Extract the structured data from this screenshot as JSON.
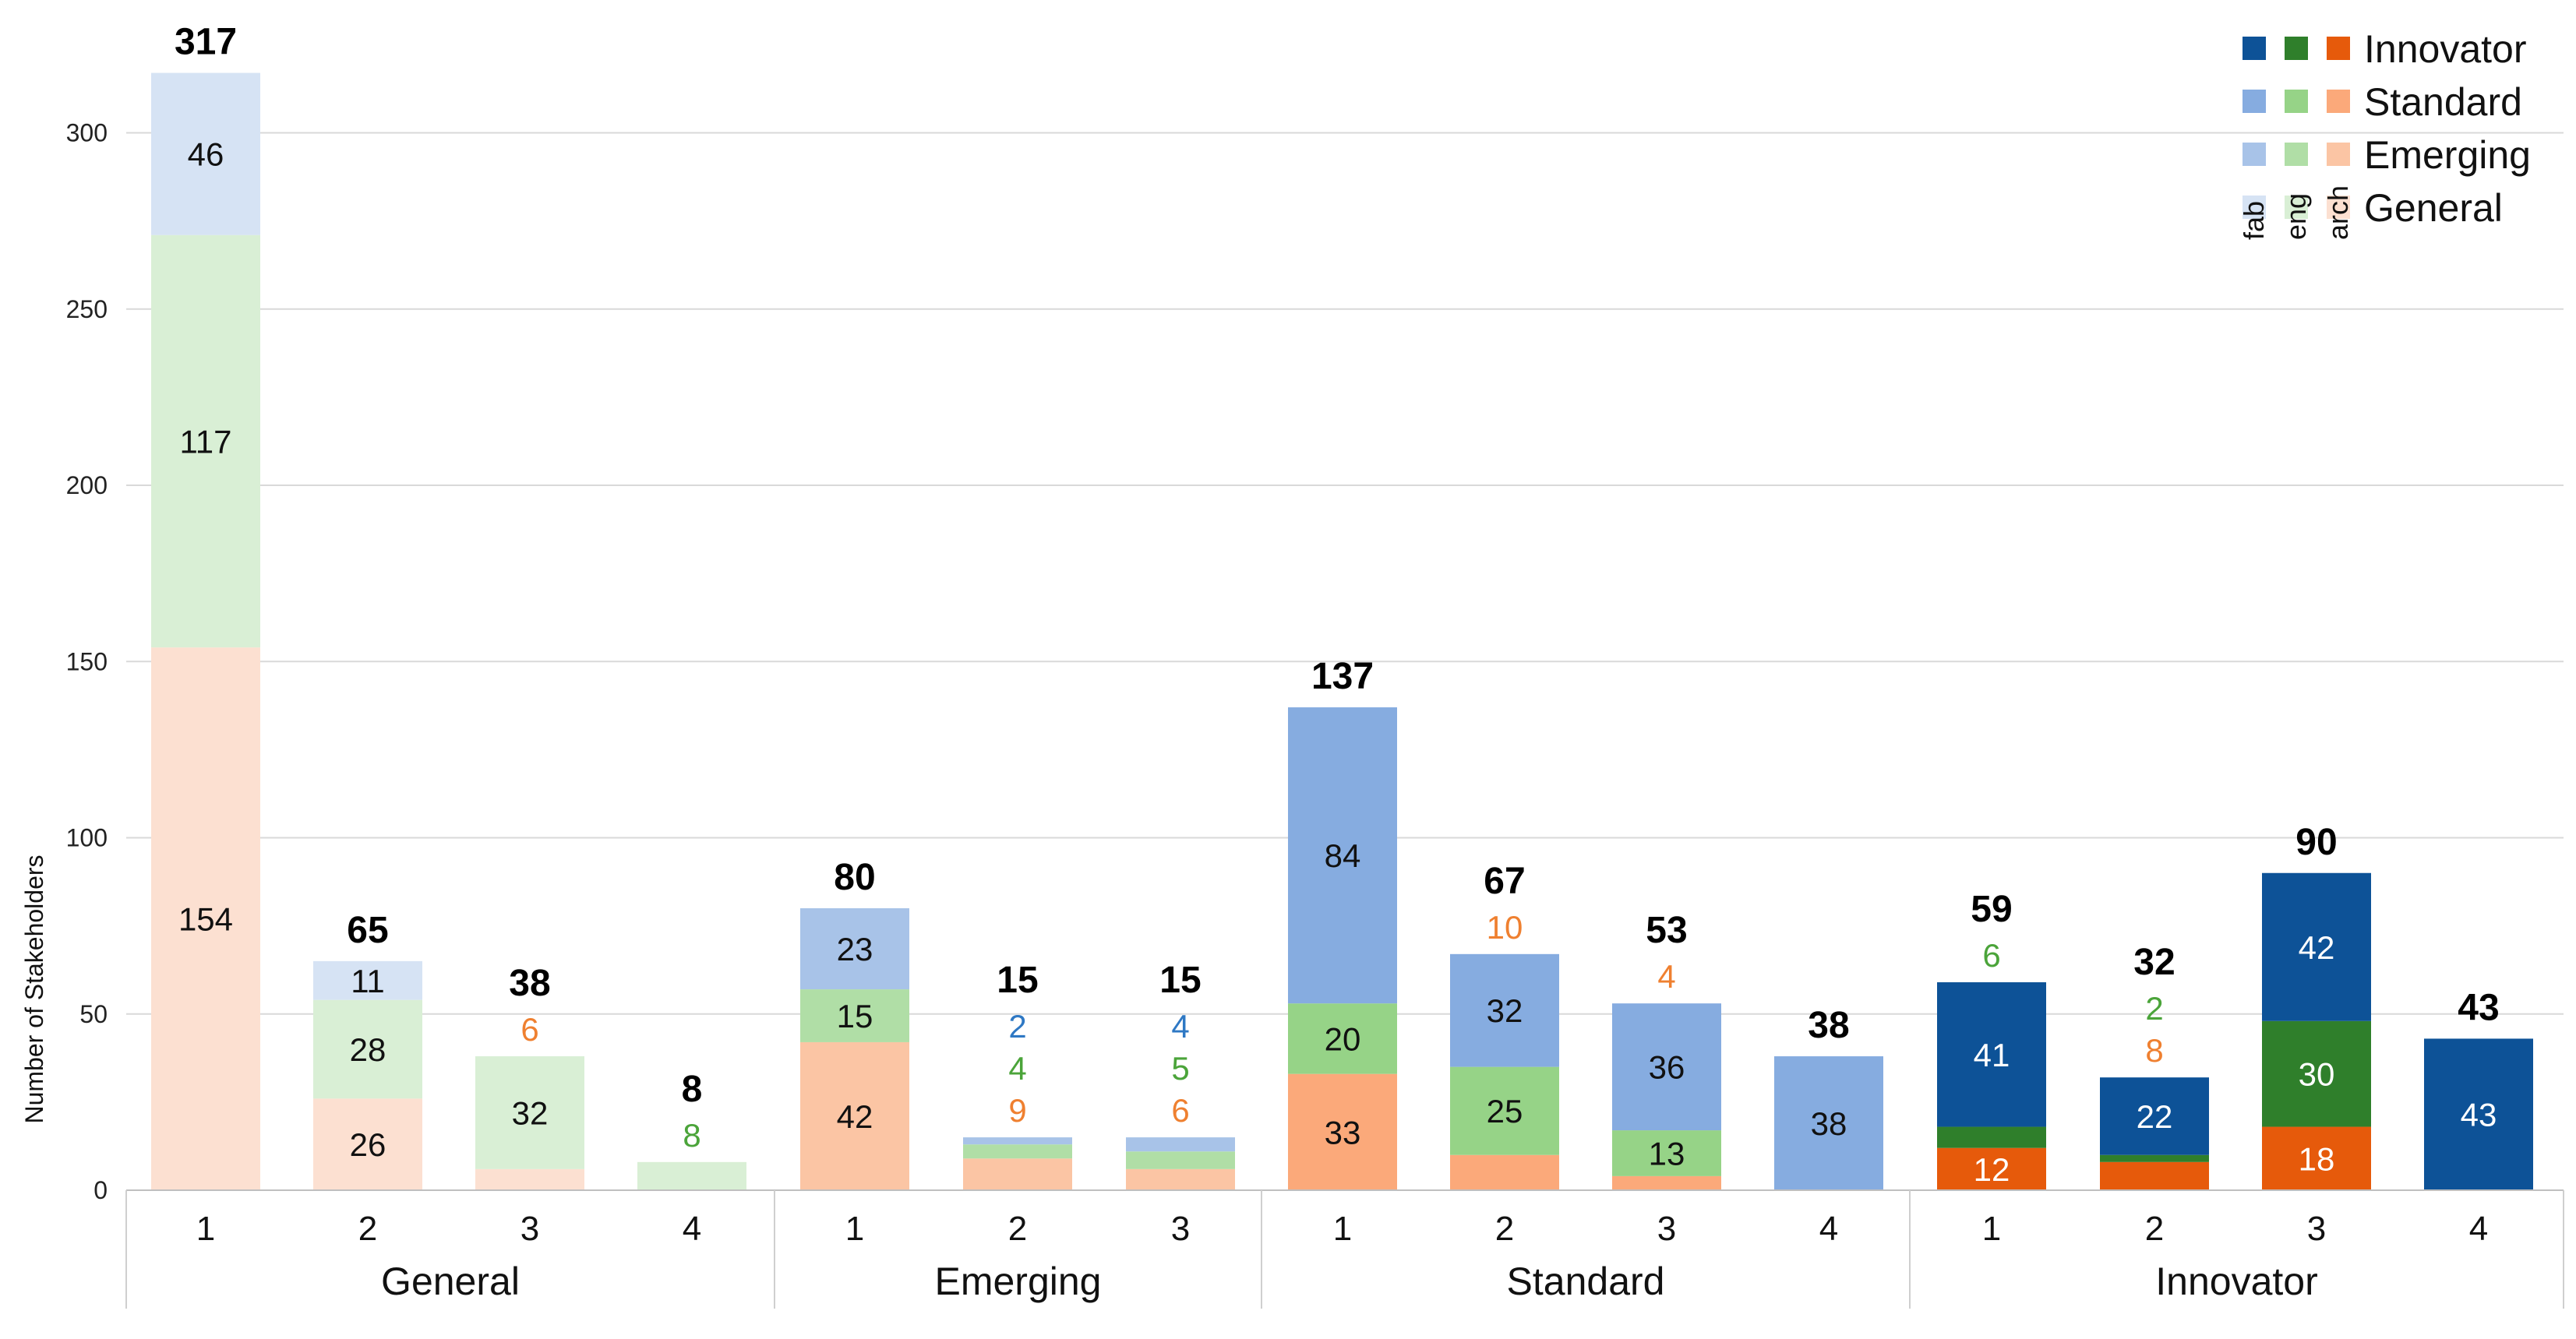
{
  "chart_data": {
    "type": "stacked-bar",
    "ylabel": "Number of Stakeholders",
    "ylim": [
      0,
      320
    ],
    "yticks": [
      0,
      50,
      100,
      150,
      200,
      250,
      300
    ],
    "grid": true,
    "legend_position": "top-right",
    "legend": {
      "rows": [
        "Innovator",
        "Standard",
        "Emerging",
        "General"
      ],
      "columns": [
        "fab",
        "eng",
        "arch"
      ]
    },
    "colors": {
      "fab": {
        "General": "#d6e3f4",
        "Emerging": "#a8c3e8",
        "Standard": "#86ace0",
        "Innovator": "#0d5297"
      },
      "eng": {
        "General": "#d9efd5",
        "Emerging": "#b0dea6",
        "Standard": "#96d387",
        "Innovator": "#2f7f2b"
      },
      "arch": {
        "General": "#fce0d1",
        "Emerging": "#fbc5a4",
        "Standard": "#fba97a",
        "Innovator": "#e65a0b"
      },
      "label_fab": "#2e78c4",
      "label_eng": "#4ba43a",
      "label_arch": "#ef8030"
    },
    "bars": [
      {
        "group": "General",
        "category": "1",
        "total": 317,
        "arch": 154,
        "eng": 117,
        "fab": 46
      },
      {
        "group": "General",
        "category": "2",
        "total": 65,
        "arch": 26,
        "eng": 28,
        "fab": 11
      },
      {
        "group": "General",
        "category": "3",
        "total": 38,
        "arch": 6,
        "eng": 32,
        "fab": 0
      },
      {
        "group": "General",
        "category": "4",
        "total": 8,
        "arch": 0,
        "eng": 8,
        "fab": 0
      },
      {
        "group": "Emerging",
        "category": "1",
        "total": 80,
        "arch": 42,
        "eng": 15,
        "fab": 23
      },
      {
        "group": "Emerging",
        "category": "2",
        "total": 15,
        "arch": 9,
        "eng": 4,
        "fab": 2
      },
      {
        "group": "Emerging",
        "category": "3",
        "total": 15,
        "arch": 6,
        "eng": 5,
        "fab": 4
      },
      {
        "group": "Standard",
        "category": "1",
        "total": 137,
        "arch": 33,
        "eng": 20,
        "fab": 84
      },
      {
        "group": "Standard",
        "category": "2",
        "total": 67,
        "arch": 10,
        "eng": 25,
        "fab": 32
      },
      {
        "group": "Standard",
        "category": "3",
        "total": 53,
        "arch": 4,
        "eng": 13,
        "fab": 36
      },
      {
        "group": "Standard",
        "category": "4",
        "total": 38,
        "arch": 0,
        "eng": 0,
        "fab": 38
      },
      {
        "group": "Innovator",
        "category": "1",
        "total": 59,
        "arch": 12,
        "eng": 6,
        "fab": 41
      },
      {
        "group": "Innovator",
        "category": "2",
        "total": 32,
        "arch": 8,
        "eng": 2,
        "fab": 22
      },
      {
        "group": "Innovator",
        "category": "3",
        "total": 90,
        "arch": 18,
        "eng": 30,
        "fab": 42
      },
      {
        "group": "Innovator",
        "category": "4",
        "total": 43,
        "arch": 0,
        "eng": 0,
        "fab": 43
      }
    ],
    "groups": [
      "General",
      "Emerging",
      "Standard",
      "Innovator"
    ]
  }
}
